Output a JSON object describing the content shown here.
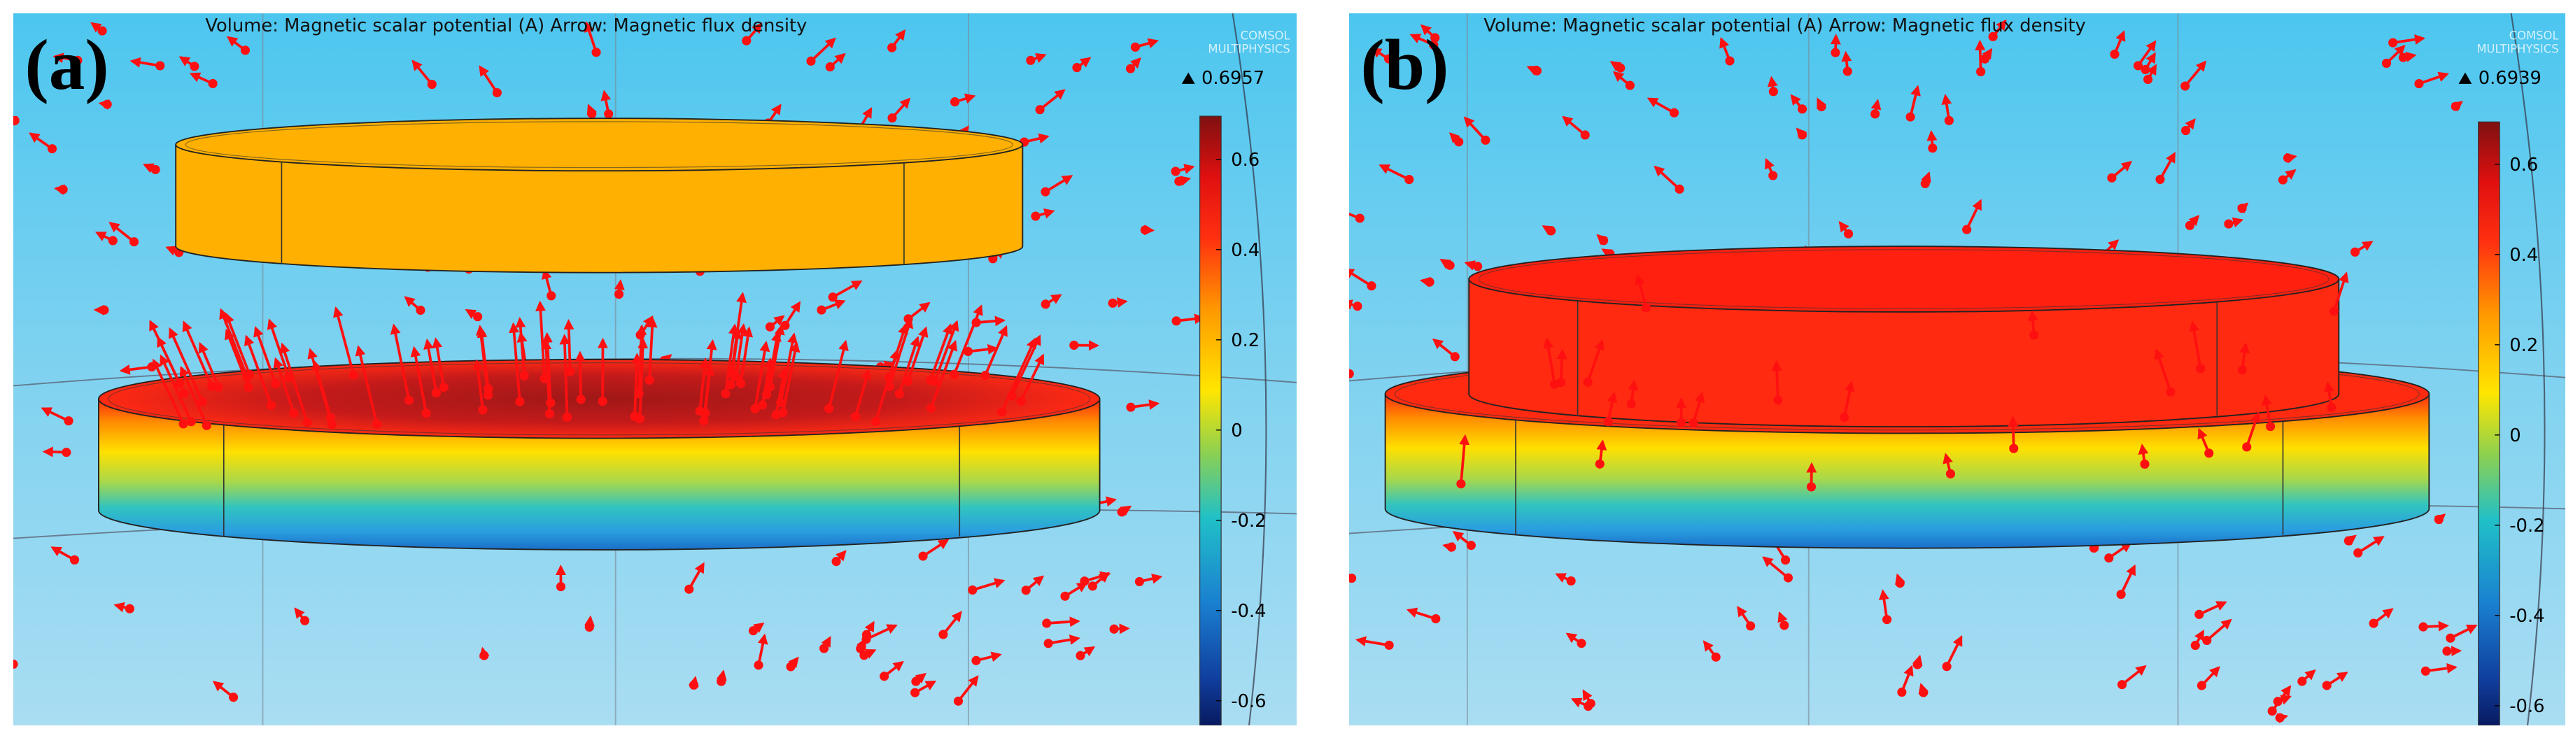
{
  "panels": [
    {
      "label": "(a)",
      "title": "Volume: Magnetic scalar potential (A) Arrow: Magnetic flux density",
      "watermark": [
        "COMSOL",
        "MULTIPHYSICS"
      ],
      "max": 0.6957,
      "colorbar_ticks": [
        0.6,
        0.4,
        0.2,
        0,
        -0.2,
        -0.4,
        -0.6
      ]
    },
    {
      "label": "(b)",
      "title": "Volume: Magnetic scalar potential (A) Arrow: Magnetic flux density",
      "watermark": [
        "COMSOL",
        "MULTIPHYSICS"
      ],
      "max": 0.6939,
      "colorbar_ticks": [
        0.6,
        0.4,
        0.2,
        0,
        -0.2,
        -0.4,
        -0.6
      ]
    }
  ]
}
